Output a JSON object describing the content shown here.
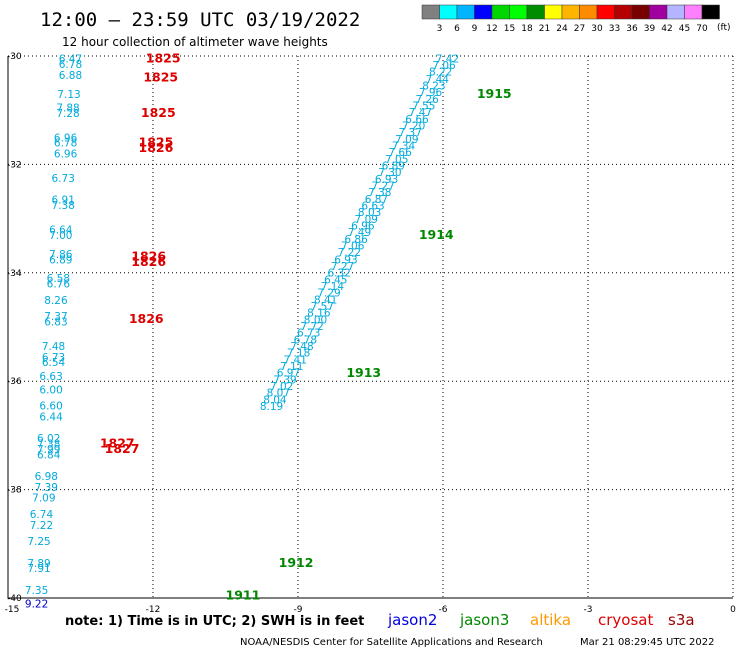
{
  "header": {
    "title": "12:00 — 23:59 UTC 03/19/2022",
    "subtitle": "12 hour collection of altimeter wave heights"
  },
  "colorbar": {
    "colors": [
      "#808080",
      "#00ffff",
      "#00b4ff",
      "#0000ff",
      "#00d700",
      "#00ff00",
      "#008c00",
      "#ffff00",
      "#ffb400",
      "#ff8c00",
      "#ff0000",
      "#b40000",
      "#780000",
      "#a000a0",
      "#b4b4ff",
      "#ff80ff",
      "#000000"
    ],
    "labels": [
      "3",
      "6",
      "9",
      "12",
      "15",
      "18",
      "21",
      "24",
      "27",
      "30",
      "33",
      "36",
      "39",
      "42",
      "45",
      "70"
    ],
    "unit": "(ft)"
  },
  "chart_data": {
    "type": "scatter",
    "title": "12:00 — 23:59 UTC 03/19/2022",
    "xlim": [
      -15,
      0
    ],
    "ylim": [
      -40,
      -30
    ],
    "x_ticks": [
      -15,
      -12,
      -9,
      -6,
      -3,
      0
    ],
    "y_ticks": [
      -30,
      -32,
      -34,
      -36,
      -38,
      -40
    ],
    "x_tick_labels": [
      "-15",
      "-12",
      "-9",
      "-6",
      "-3",
      "0"
    ],
    "y_tick_labels": [
      "-30",
      "-32",
      "-34",
      "-36",
      "-38",
      "-40"
    ],
    "grid": true,
    "series": [
      {
        "satellite": "jason3",
        "color": "#00aadd",
        "points": [
          {
            "x": -6.15,
            "y": -30.05,
            "v": "7.42"
          },
          {
            "x": -6.22,
            "y": -30.17,
            "v": "7.06"
          },
          {
            "x": -6.29,
            "y": -30.29,
            "v": "8.22"
          },
          {
            "x": -6.36,
            "y": -30.42,
            "v": "7.44"
          },
          {
            "x": -6.43,
            "y": -30.54,
            "v": "8.23"
          },
          {
            "x": -6.5,
            "y": -30.66,
            "v": "7.96"
          },
          {
            "x": -6.57,
            "y": -30.79,
            "v": "7.26"
          },
          {
            "x": -6.64,
            "y": -30.91,
            "v": "7.55"
          },
          {
            "x": -6.71,
            "y": -31.03,
            "v": "7.47"
          },
          {
            "x": -6.78,
            "y": -31.16,
            "v": "6.66"
          },
          {
            "x": -6.85,
            "y": -31.28,
            "v": "7.20"
          },
          {
            "x": -6.92,
            "y": -31.4,
            "v": "7.37"
          },
          {
            "x": -6.99,
            "y": -31.53,
            "v": "7.09"
          },
          {
            "x": -7.06,
            "y": -31.65,
            "v": "7.34"
          },
          {
            "x": -7.13,
            "y": -31.77,
            "v": "7.66"
          },
          {
            "x": -7.2,
            "y": -31.9,
            "v": "7.05"
          },
          {
            "x": -7.27,
            "y": -32.02,
            "v": "6.89"
          },
          {
            "x": -7.34,
            "y": -32.14,
            "v": "7.30"
          },
          {
            "x": -7.41,
            "y": -32.27,
            "v": "6.93"
          },
          {
            "x": -7.48,
            "y": -32.39,
            "v": "7.27"
          },
          {
            "x": -7.55,
            "y": -32.51,
            "v": "7.38"
          },
          {
            "x": -7.62,
            "y": -32.64,
            "v": "6.87"
          },
          {
            "x": -7.69,
            "y": -32.76,
            "v": "6.63"
          },
          {
            "x": -7.76,
            "y": -32.88,
            "v": "8.03"
          },
          {
            "x": -7.83,
            "y": -33.01,
            "v": "7.09"
          },
          {
            "x": -7.9,
            "y": -33.13,
            "v": "6.96"
          },
          {
            "x": -7.97,
            "y": -33.25,
            "v": "7.49"
          },
          {
            "x": -8.04,
            "y": -33.38,
            "v": "6.86"
          },
          {
            "x": -8.11,
            "y": -33.5,
            "v": "7.06"
          },
          {
            "x": -8.18,
            "y": -33.62,
            "v": "7.22"
          },
          {
            "x": -8.25,
            "y": -33.75,
            "v": "6.93"
          },
          {
            "x": -8.32,
            "y": -33.87,
            "v": "7.27"
          },
          {
            "x": -8.39,
            "y": -33.99,
            "v": "6.32"
          },
          {
            "x": -8.46,
            "y": -34.12,
            "v": "6.45"
          },
          {
            "x": -8.53,
            "y": -34.24,
            "v": "7.14"
          },
          {
            "x": -8.6,
            "y": -34.36,
            "v": "7.29"
          },
          {
            "x": -8.67,
            "y": -34.49,
            "v": "8.41"
          },
          {
            "x": -8.74,
            "y": -34.61,
            "v": "7.57"
          },
          {
            "x": -8.81,
            "y": -34.73,
            "v": "8.16"
          },
          {
            "x": -8.88,
            "y": -34.86,
            "v": "8.00"
          },
          {
            "x": -8.95,
            "y": -34.98,
            "v": "7.72"
          },
          {
            "x": -9.02,
            "y": -35.1,
            "v": "6.73"
          },
          {
            "x": -9.09,
            "y": -35.23,
            "v": "6.78"
          },
          {
            "x": -9.16,
            "y": -35.35,
            "v": "7.48"
          },
          {
            "x": -9.23,
            "y": -35.47,
            "v": "7.18"
          },
          {
            "x": -9.3,
            "y": -35.6,
            "v": "7.41"
          },
          {
            "x": -9.37,
            "y": -35.72,
            "v": "7.11"
          },
          {
            "x": -9.44,
            "y": -35.84,
            "v": "6.97"
          },
          {
            "x": -9.51,
            "y": -35.97,
            "v": "7.39"
          },
          {
            "x": -9.58,
            "y": -36.09,
            "v": "7.02"
          },
          {
            "x": -9.65,
            "y": -36.21,
            "v": "8.07"
          },
          {
            "x": -9.72,
            "y": -36.34,
            "v": "8.04"
          },
          {
            "x": -9.79,
            "y": -36.46,
            "v": "8.19"
          }
        ],
        "pass_labels": [
          {
            "x": -5.3,
            "y": -30.7,
            "v": "1915"
          },
          {
            "x": -6.5,
            "y": -33.3,
            "v": "1914"
          },
          {
            "x": -8.0,
            "y": -35.85,
            "v": "1913"
          },
          {
            "x": -9.4,
            "y": -39.35,
            "v": "1912"
          },
          {
            "x": -10.5,
            "y": -39.95,
            "v": "1911"
          }
        ]
      },
      {
        "satellite": "cryosat",
        "color": "#00aadd",
        "points": [
          {
            "x": -13.95,
            "y": -30.05,
            "v": "6.47"
          },
          {
            "x": -13.95,
            "y": -30.15,
            "v": "6.78"
          },
          {
            "x": -13.95,
            "y": -30.35,
            "v": "6.88"
          },
          {
            "x": -13.98,
            "y": -30.7,
            "v": "7.13"
          },
          {
            "x": -14.0,
            "y": -30.95,
            "v": "7.88"
          },
          {
            "x": -14.0,
            "y": -31.05,
            "v": "7.28"
          },
          {
            "x": -14.05,
            "y": -31.5,
            "v": "6.96"
          },
          {
            "x": -14.05,
            "y": -31.6,
            "v": "6.78"
          },
          {
            "x": -14.05,
            "y": -31.8,
            "v": "6.96"
          },
          {
            "x": -14.1,
            "y": -32.25,
            "v": "6.73"
          },
          {
            "x": -14.1,
            "y": -32.65,
            "v": "6.91"
          },
          {
            "x": -14.1,
            "y": -32.75,
            "v": "7.38"
          },
          {
            "x": -14.15,
            "y": -33.2,
            "v": "6.64"
          },
          {
            "x": -14.15,
            "y": -33.3,
            "v": "7.00"
          },
          {
            "x": -14.15,
            "y": -33.65,
            "v": "7.86"
          },
          {
            "x": -14.15,
            "y": -33.75,
            "v": "6.89"
          },
          {
            "x": -14.2,
            "y": -34.1,
            "v": "6.58"
          },
          {
            "x": -14.2,
            "y": -34.2,
            "v": "6.76"
          },
          {
            "x": -14.25,
            "y": -34.5,
            "v": "8.26"
          },
          {
            "x": -14.25,
            "y": -34.8,
            "v": "7.37"
          },
          {
            "x": -14.25,
            "y": -34.9,
            "v": "6.83"
          },
          {
            "x": -14.3,
            "y": -35.35,
            "v": "7.48"
          },
          {
            "x": -14.3,
            "y": -35.55,
            "v": "6.73"
          },
          {
            "x": -14.3,
            "y": -35.65,
            "v": "6.54"
          },
          {
            "x": -14.35,
            "y": -35.9,
            "v": "6.63"
          },
          {
            "x": -14.35,
            "y": -36.15,
            "v": "6.00"
          },
          {
            "x": -14.35,
            "y": -36.45,
            "v": "6.60"
          },
          {
            "x": -14.35,
            "y": -36.65,
            "v": "6.44"
          },
          {
            "x": -14.4,
            "y": -37.05,
            "v": "6.02"
          },
          {
            "x": -14.4,
            "y": -37.15,
            "v": "7.38"
          },
          {
            "x": -14.4,
            "y": -37.25,
            "v": "7.99"
          },
          {
            "x": -14.4,
            "y": -37.35,
            "v": "6.84"
          },
          {
            "x": -14.45,
            "y": -37.75,
            "v": "6.98"
          },
          {
            "x": -14.45,
            "y": -37.95,
            "v": "7.39"
          },
          {
            "x": -14.5,
            "y": -38.15,
            "v": "7.09"
          },
          {
            "x": -14.55,
            "y": -38.45,
            "v": "6.74"
          },
          {
            "x": -14.55,
            "y": -38.65,
            "v": "7.22"
          },
          {
            "x": -14.6,
            "y": -38.95,
            "v": "7.25"
          },
          {
            "x": -14.6,
            "y": -39.35,
            "v": "7.89"
          },
          {
            "x": -14.6,
            "y": -39.45,
            "v": "7.91"
          },
          {
            "x": -14.65,
            "y": -39.85,
            "v": "7.35"
          },
          {
            "x": -14.65,
            "y": -40.1,
            "v": "9.22"
          }
        ],
        "pass_labels": [
          {
            "x": -12.15,
            "y": -30.05,
            "v": "1825"
          },
          {
            "x": -12.2,
            "y": -30.4,
            "v": "1825"
          },
          {
            "x": -12.25,
            "y": -31.05,
            "v": "1825"
          },
          {
            "x": -12.3,
            "y": -31.6,
            "v": "1825"
          },
          {
            "x": -12.3,
            "y": -31.7,
            "v": "1826"
          },
          {
            "x": -12.45,
            "y": -33.7,
            "v": "1826"
          },
          {
            "x": -12.45,
            "y": -33.8,
            "v": "1826"
          },
          {
            "x": -12.5,
            "y": -34.85,
            "v": "1826"
          },
          {
            "x": -13.1,
            "y": -37.15,
            "v": "1827"
          },
          {
            "x": -13.0,
            "y": -37.25,
            "v": "1827"
          }
        ]
      }
    ]
  },
  "legend": {
    "note": "note:  1) Time is in UTC; 2) SWH is in feet",
    "satellites": [
      {
        "name": "jason2",
        "color": "#0000dd"
      },
      {
        "name": "jason3",
        "color": "#008800"
      },
      {
        "name": "altika",
        "color": "#ff9900"
      },
      {
        "name": "cryosat",
        "color": "#dd0000"
      },
      {
        "name": "s3a",
        "color": "#990000"
      }
    ]
  },
  "footer": {
    "source": "NOAA/NESDIS Center for Satellite Applications and Research",
    "timestamp": "Mar 21 08:29:45 UTC 2022"
  }
}
